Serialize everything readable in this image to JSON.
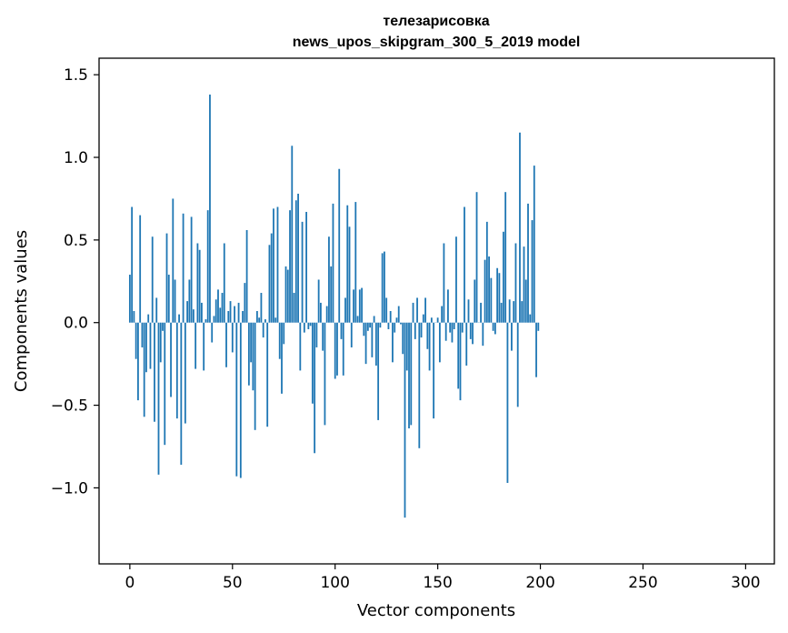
{
  "chart_data": {
    "type": "bar",
    "title": "телезарисовка",
    "subtitle": "news_upos_skipgram_300_5_2019 model",
    "xlabel": "Vector components",
    "ylabel": "Components values",
    "xlim": [
      -15,
      314
    ],
    "ylim": [
      -1.46,
      1.6
    ],
    "xticks": [
      0,
      50,
      100,
      150,
      200,
      250,
      300
    ],
    "xtick_labels": [
      "0",
      "50",
      "100",
      "150",
      "200",
      "250",
      "300"
    ],
    "yticks": [
      -1.0,
      -0.5,
      0.0,
      0.5,
      1.0,
      1.5
    ],
    "ytick_labels": [
      "−1.0",
      "−0.5",
      "0.0",
      "0.5",
      "1.0",
      "1.5"
    ],
    "bar_color": "#1f77b4",
    "values": [
      0.29,
      0.7,
      0.07,
      -0.22,
      -0.47,
      0.65,
      -0.15,
      -0.57,
      -0.3,
      0.05,
      -0.28,
      0.52,
      -0.6,
      0.15,
      -0.92,
      -0.24,
      -0.05,
      -0.74,
      0.54,
      0.29,
      -0.45,
      0.75,
      0.26,
      -0.58,
      0.05,
      -0.86,
      0.66,
      -0.61,
      0.13,
      0.26,
      0.64,
      0.08,
      -0.28,
      0.48,
      0.44,
      0.12,
      -0.29,
      0.02,
      0.68,
      1.38,
      -0.12,
      0.04,
      0.14,
      0.2,
      0.09,
      0.18,
      0.48,
      -0.27,
      0.07,
      0.13,
      -0.18,
      0.1,
      -0.93,
      0.12,
      -0.94,
      0.07,
      0.24,
      0.56,
      -0.38,
      -0.24,
      -0.41,
      -0.65,
      0.07,
      0.03,
      0.18,
      -0.09,
      0.02,
      -0.63,
      0.47,
      0.54,
      0.69,
      0.03,
      0.7,
      -0.22,
      -0.43,
      -0.13,
      0.34,
      0.32,
      0.68,
      1.07,
      0.18,
      0.74,
      0.78,
      -0.29,
      0.61,
      -0.06,
      0.67,
      -0.04,
      -0.02,
      -0.49,
      -0.79,
      -0.15,
      0.26,
      0.12,
      -0.17,
      -0.62,
      0.1,
      0.52,
      0.34,
      0.72,
      -0.34,
      -0.32,
      0.93,
      -0.1,
      -0.32,
      0.15,
      0.71,
      0.58,
      -0.15,
      0.2,
      0.73,
      0.04,
      0.2,
      0.21,
      -0.08,
      -0.25,
      -0.05,
      -0.03,
      -0.21,
      0.04,
      -0.26,
      -0.59,
      -0.03,
      0.42,
      0.43,
      0.15,
      -0.04,
      0.07,
      -0.24,
      -0.06,
      0.03,
      0.1,
      -0.01,
      -0.19,
      -1.18,
      -0.29,
      -0.64,
      -0.62,
      0.12,
      -0.1,
      0.15,
      -0.76,
      -0.09,
      0.05,
      0.15,
      -0.16,
      -0.29,
      0.03,
      -0.58,
      0.0,
      0.03,
      -0.24,
      0.1,
      0.48,
      -0.11,
      0.2,
      -0.06,
      -0.12,
      -0.04,
      0.52,
      -0.4,
      -0.47,
      -0.06,
      0.7,
      -0.26,
      0.14,
      -0.1,
      -0.13,
      0.26,
      0.79,
      0.0,
      0.12,
      -0.14,
      0.38,
      0.61,
      0.4,
      0.27,
      -0.05,
      -0.07,
      0.33,
      0.3,
      0.12,
      0.55,
      0.79,
      -0.97,
      0.14,
      -0.17,
      0.13,
      0.48,
      -0.51,
      1.15,
      0.13,
      0.46,
      0.26,
      0.72,
      0.05,
      0.62,
      0.95,
      -0.33,
      -0.05
    ]
  }
}
